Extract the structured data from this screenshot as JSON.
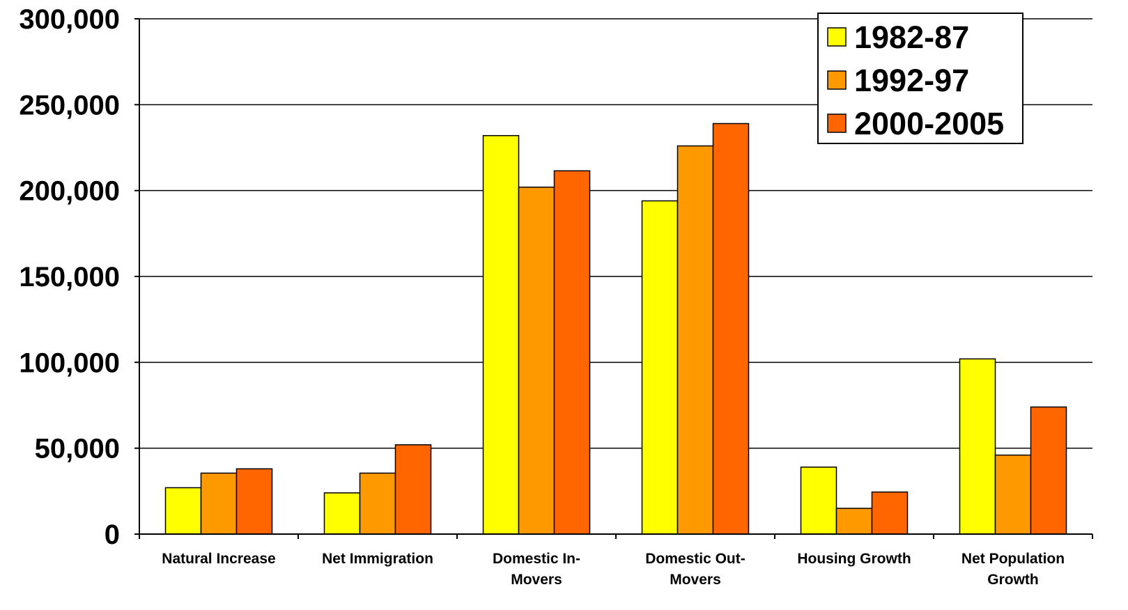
{
  "chart_data": {
    "type": "bar",
    "categories": [
      [
        "Natural Increase"
      ],
      [
        "Net Immigration"
      ],
      [
        "Domestic In-",
        "Movers"
      ],
      [
        "Domestic Out-",
        "Movers"
      ],
      [
        "Housing Growth"
      ],
      [
        "Net Population",
        "Growth"
      ]
    ],
    "series": [
      {
        "name": "1982-87",
        "color": "#FFFF00",
        "values": [
          27000,
          24000,
          232000,
          194000,
          39000,
          102000
        ]
      },
      {
        "name": "1992-97",
        "color": "#FF9900",
        "values": [
          35500,
          35500,
          202000,
          226000,
          15000,
          46000
        ]
      },
      {
        "name": "2000-2005",
        "color": "#FF6600",
        "values": [
          38000,
          52000,
          211500,
          239000,
          24500,
          74000
        ]
      }
    ],
    "ylim": [
      0,
      300000
    ],
    "yticks": [
      "0",
      "50,000",
      "100,000",
      "150,000",
      "200,000",
      "250,000",
      "300,000"
    ],
    "ytick_values": [
      0,
      50000,
      100000,
      150000,
      200000,
      250000,
      300000
    ],
    "grid": true,
    "legend_position": "top-right"
  }
}
